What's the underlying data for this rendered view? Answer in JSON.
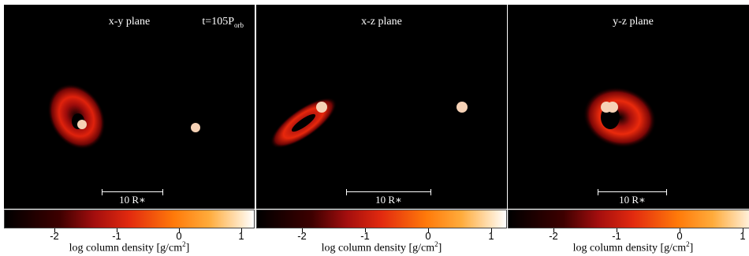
{
  "panels": [
    {
      "title": "x-y plane",
      "time": "t=105",
      "time_sub": "orb",
      "time_prefix_sub": "P",
      "scale_label": "10 R∗"
    },
    {
      "title": "x-z plane",
      "scale_label": "10 R∗"
    },
    {
      "title": "y-z plane",
      "scale_label": "10 R∗"
    }
  ],
  "colorbar": {
    "ticks": [
      "-2",
      "-1",
      "0",
      "1"
    ],
    "tick_values": [
      -2,
      -1,
      0,
      1
    ],
    "range": [
      -2.8,
      1.1
    ],
    "label": "log column density [g/cm",
    "label_sup": "2",
    "label_end": "]",
    "colors": [
      "#000000",
      "#a30e0e",
      "#ff7a0a",
      "#ffffff"
    ]
  }
}
